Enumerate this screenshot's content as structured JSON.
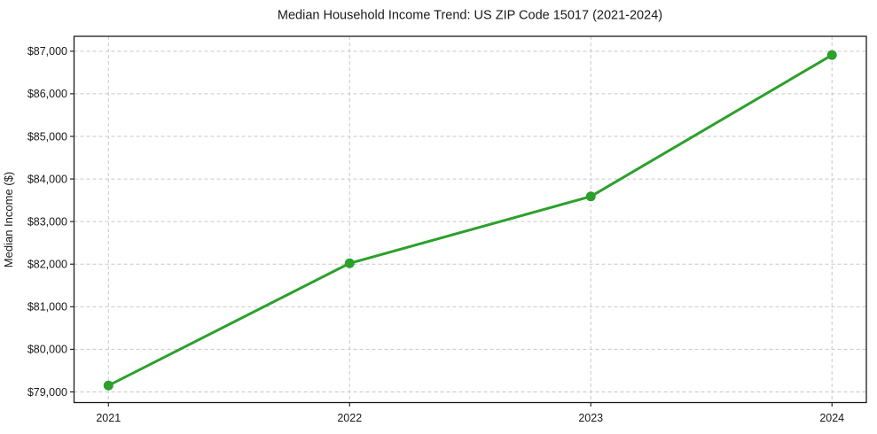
{
  "chart_data": {
    "type": "line",
    "title": "Median Household Income Trend: US ZIP Code 15017 (2021-2024)",
    "xlabel": "",
    "ylabel": "Median Income ($)",
    "categories": [
      "2021",
      "2022",
      "2023",
      "2024"
    ],
    "series": [
      {
        "name": "Median Household Income",
        "values": [
          79150,
          82020,
          83590,
          86910
        ]
      }
    ],
    "y_ticks": [
      79000,
      80000,
      81000,
      82000,
      83000,
      84000,
      85000,
      86000,
      87000
    ],
    "y_tick_labels": [
      "$79,000",
      "$80,000",
      "$81,000",
      "$82,000",
      "$83,000",
      "$84,000",
      "$85,000",
      "$86,000",
      "$87,000"
    ],
    "ylim": [
      78750,
      87350
    ],
    "grid": "dashed, horizontal and vertical",
    "legend": "none",
    "marker": "circle",
    "colors": {
      "line": "#2ca02c",
      "marker": "#2ca02c",
      "grid": "#c9c9c9",
      "axis": "#1a1a1a",
      "text": "#1a1a1a",
      "background": "#ffffff"
    }
  }
}
